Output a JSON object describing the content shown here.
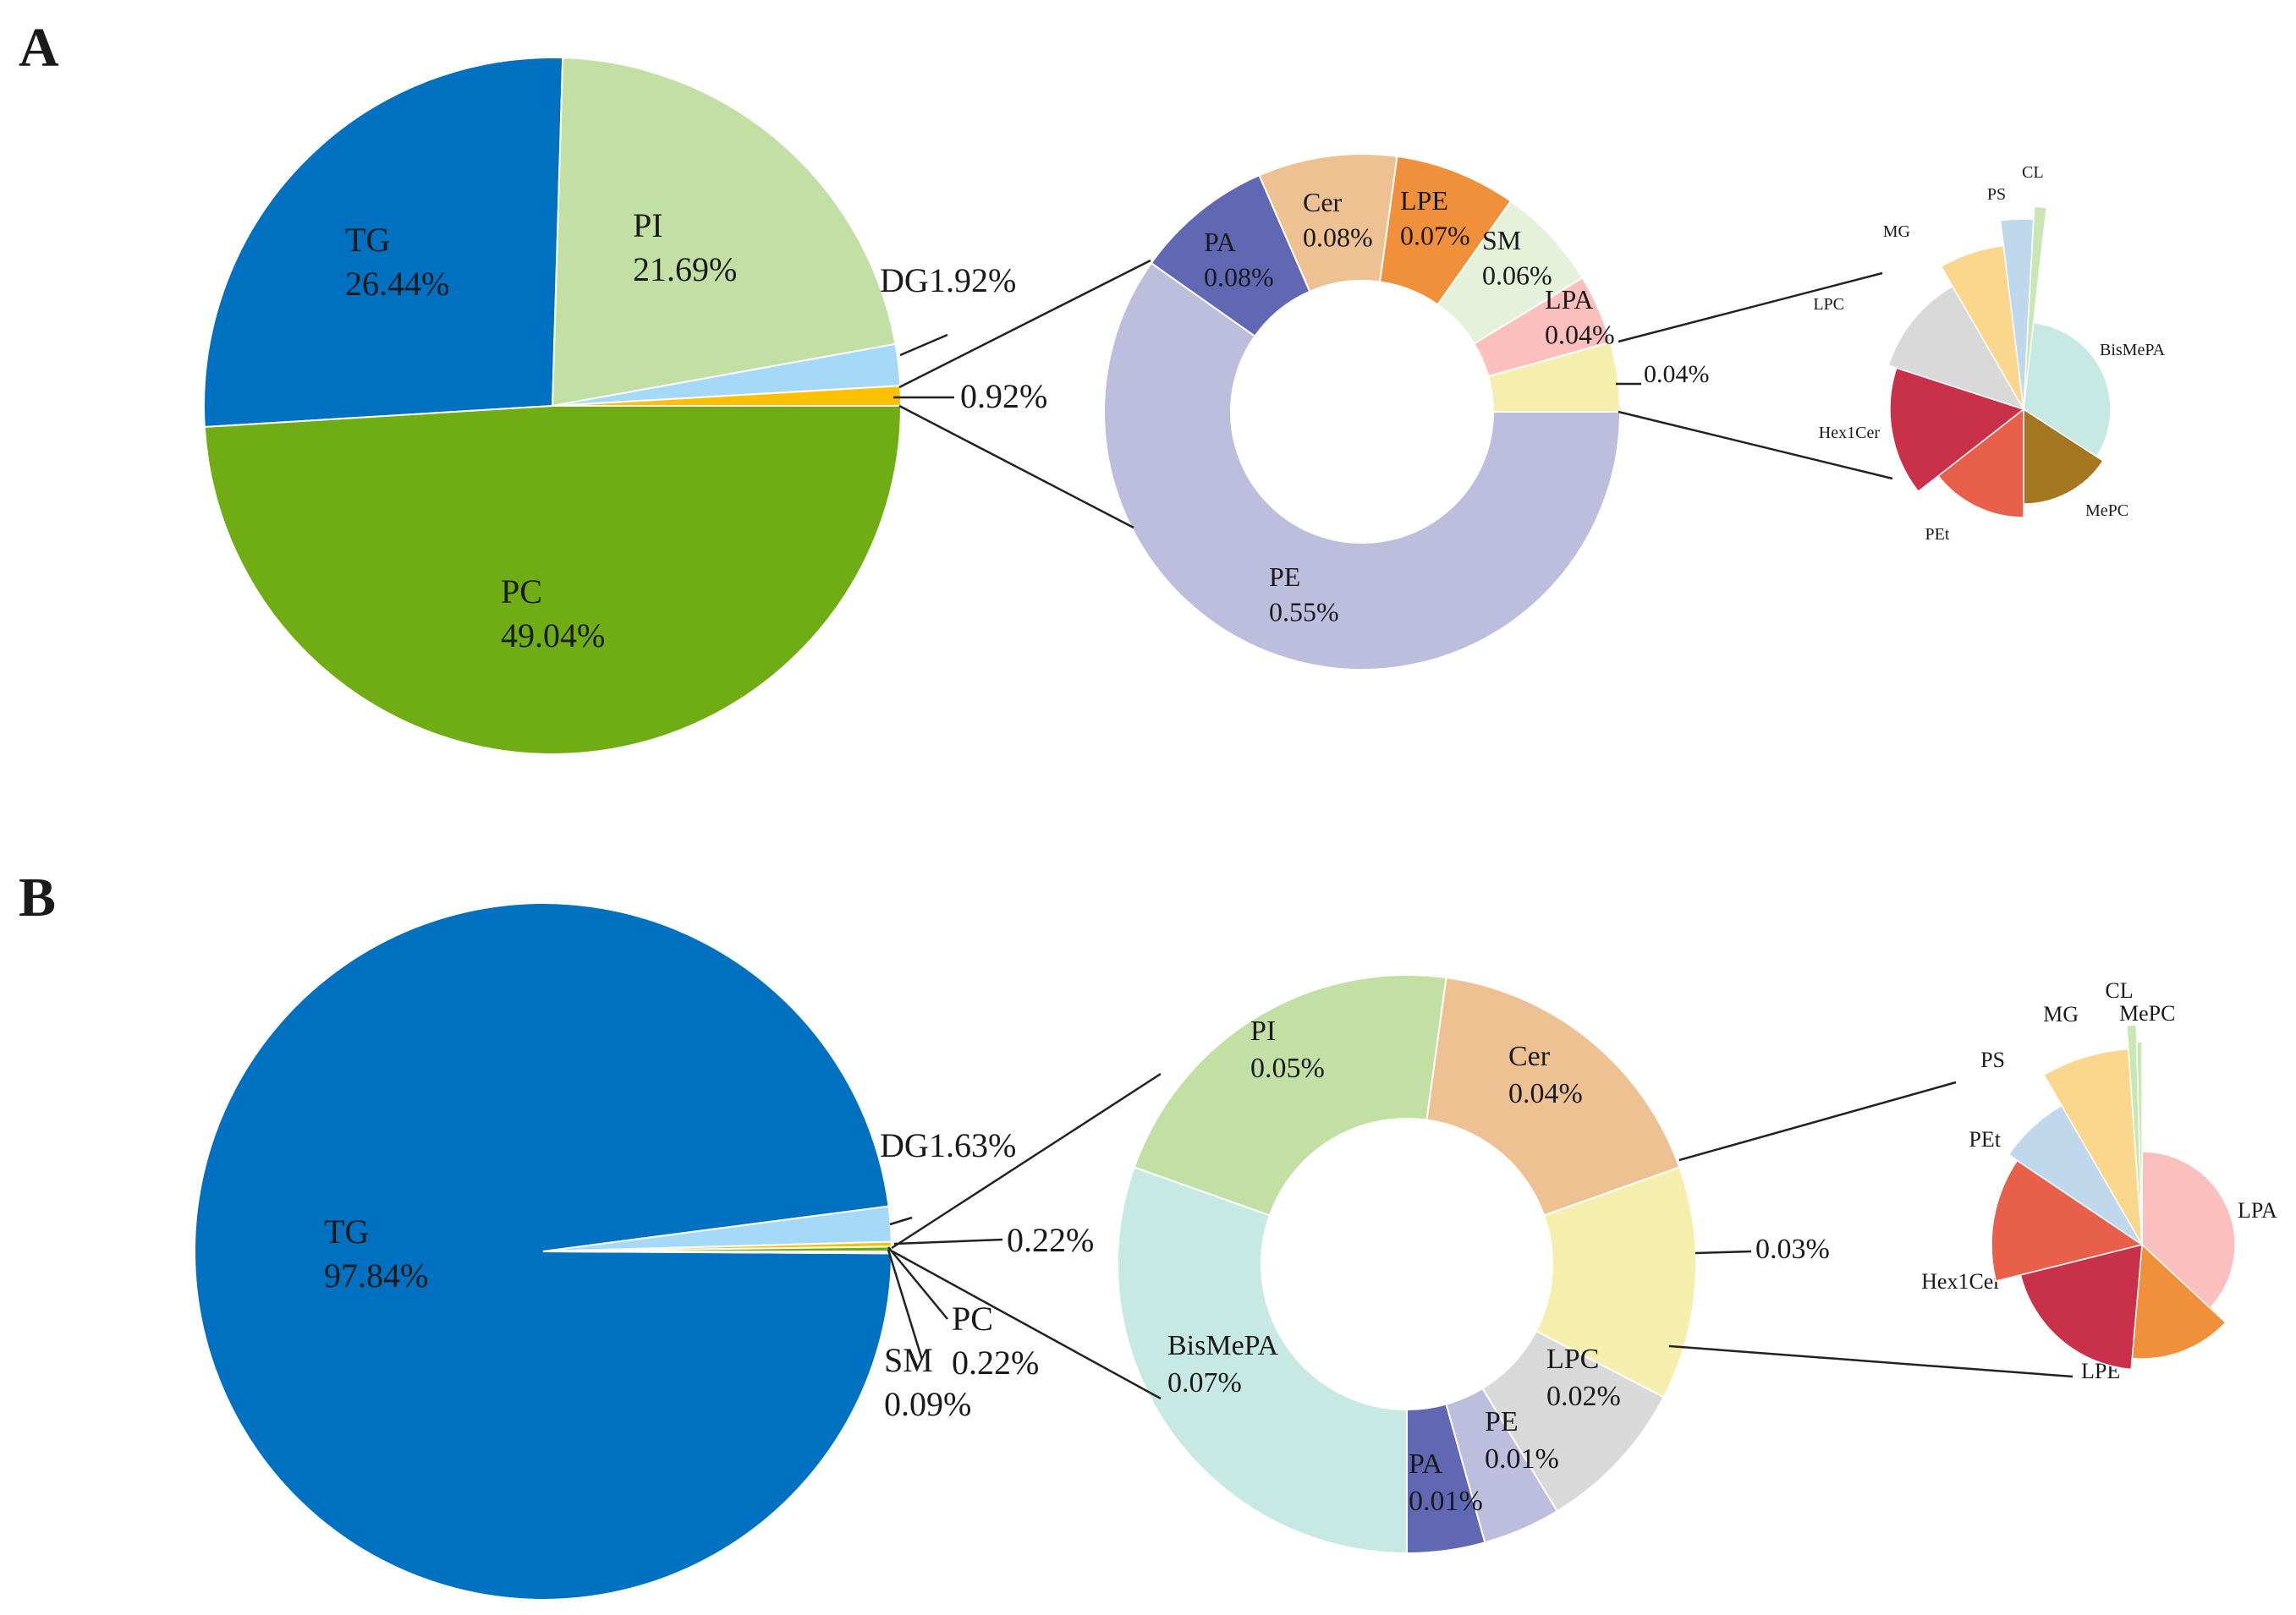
{
  "panels": [
    {
      "label": "A",
      "chart_data": [
        {
          "type": "pie",
          "role": "main",
          "slices": [
            {
              "name": "TG",
              "value": 26.44,
              "label": "26.44%",
              "color": "#0070c0"
            },
            {
              "name": "PI",
              "value": 21.69,
              "label": "21.69%",
              "color": "#c2dfa4"
            },
            {
              "name": "DG",
              "value": 1.92,
              "label": "1.92%",
              "color": "#a6d8f7"
            },
            {
              "name": "",
              "value": 0.92,
              "label": "0.92%",
              "color": "#ffc000"
            },
            {
              "name": "PC",
              "value": 49.04,
              "label": "49.04%",
              "color": "#70ad14"
            }
          ]
        },
        {
          "type": "pie",
          "role": "breakdown-ring",
          "slices": [
            {
              "name": "PE",
              "value": 0.55,
              "label": "0.55%",
              "color": "#bdbddd"
            },
            {
              "name": "PA",
              "value": 0.08,
              "label": "0.08%",
              "color": "#6068b4"
            },
            {
              "name": "Cer",
              "value": 0.08,
              "label": "0.08%",
              "color": "#eec192"
            },
            {
              "name": "LPE",
              "value": 0.07,
              "label": "0.07%",
              "color": "#f0903a"
            },
            {
              "name": "SM",
              "value": 0.06,
              "label": "0.06%",
              "color": "#e5f1d9"
            },
            {
              "name": "LPA",
              "value": 0.04,
              "label": "0.04%",
              "color": "#fbbfbd"
            },
            {
              "name": "",
              "value": 0.04,
              "label": "0.04%",
              "color": "#f5eeac"
            }
          ]
        },
        {
          "type": "pie",
          "role": "detail",
          "slices": [
            {
              "name": "BisMePA",
              "color": "#c6e9e3"
            },
            {
              "name": "MePC",
              "color": "#a47720"
            },
            {
              "name": "PEt",
              "color": "#e8604a"
            },
            {
              "name": "Hex1Cer",
              "color": "#c9304a"
            },
            {
              "name": "LPC",
              "color": "#d9d9d9"
            },
            {
              "name": "MG",
              "color": "#fbd78e"
            },
            {
              "name": "PS",
              "color": "#c0d8eb"
            },
            {
              "name": "CL",
              "color": "#c9e6b5"
            }
          ]
        }
      ]
    },
    {
      "label": "B",
      "chart_data": [
        {
          "type": "pie",
          "role": "main",
          "slices": [
            {
              "name": "TG",
              "value": 97.84,
              "label": "97.84%",
              "color": "#0070c0"
            },
            {
              "name": "DG",
              "value": 1.63,
              "label": "1.63%",
              "color": "#a6d8f7"
            },
            {
              "name": "",
              "value": 0.22,
              "label": "0.22%",
              "color": "#ffc000"
            },
            {
              "name": "PC",
              "value": 0.22,
              "label": "0.22%",
              "color": "#70ad14"
            },
            {
              "name": "SM",
              "value": 0.09,
              "label": "0.09%",
              "color": "#c2dfa4"
            }
          ]
        },
        {
          "type": "pie",
          "role": "breakdown-ring",
          "slices": [
            {
              "name": "BisMePA",
              "value": 0.07,
              "label": "0.07%",
              "color": "#c6e9e3"
            },
            {
              "name": "PI",
              "value": 0.05,
              "label": "0.05%",
              "color": "#c2dfa4"
            },
            {
              "name": "Cer",
              "value": 0.04,
              "label": "0.04%",
              "color": "#eec192"
            },
            {
              "name": "",
              "value": 0.03,
              "label": "0.03%",
              "color": "#f5eeac"
            },
            {
              "name": "LPC",
              "value": 0.02,
              "label": "0.02%",
              "color": "#d9d9d9"
            },
            {
              "name": "PE",
              "value": 0.01,
              "label": "0.01%",
              "color": "#bdbddd"
            },
            {
              "name": "PA",
              "value": 0.01,
              "label": "0.01%",
              "color": "#6068b4"
            }
          ]
        },
        {
          "type": "pie",
          "role": "detail",
          "slices": [
            {
              "name": "LPA",
              "color": "#fbbfbd"
            },
            {
              "name": "LPE",
              "color": "#f0903a"
            },
            {
              "name": "Hex1Cer",
              "color": "#c9304a"
            },
            {
              "name": "PEt",
              "color": "#e8604a"
            },
            {
              "name": "PS",
              "color": "#c0d8eb"
            },
            {
              "name": "MG",
              "color": "#fbd78e"
            },
            {
              "name": "CL",
              "color": "#c9e6b5"
            },
            {
              "name": "MePC",
              "color": "#c9e6b5"
            }
          ]
        }
      ]
    }
  ]
}
